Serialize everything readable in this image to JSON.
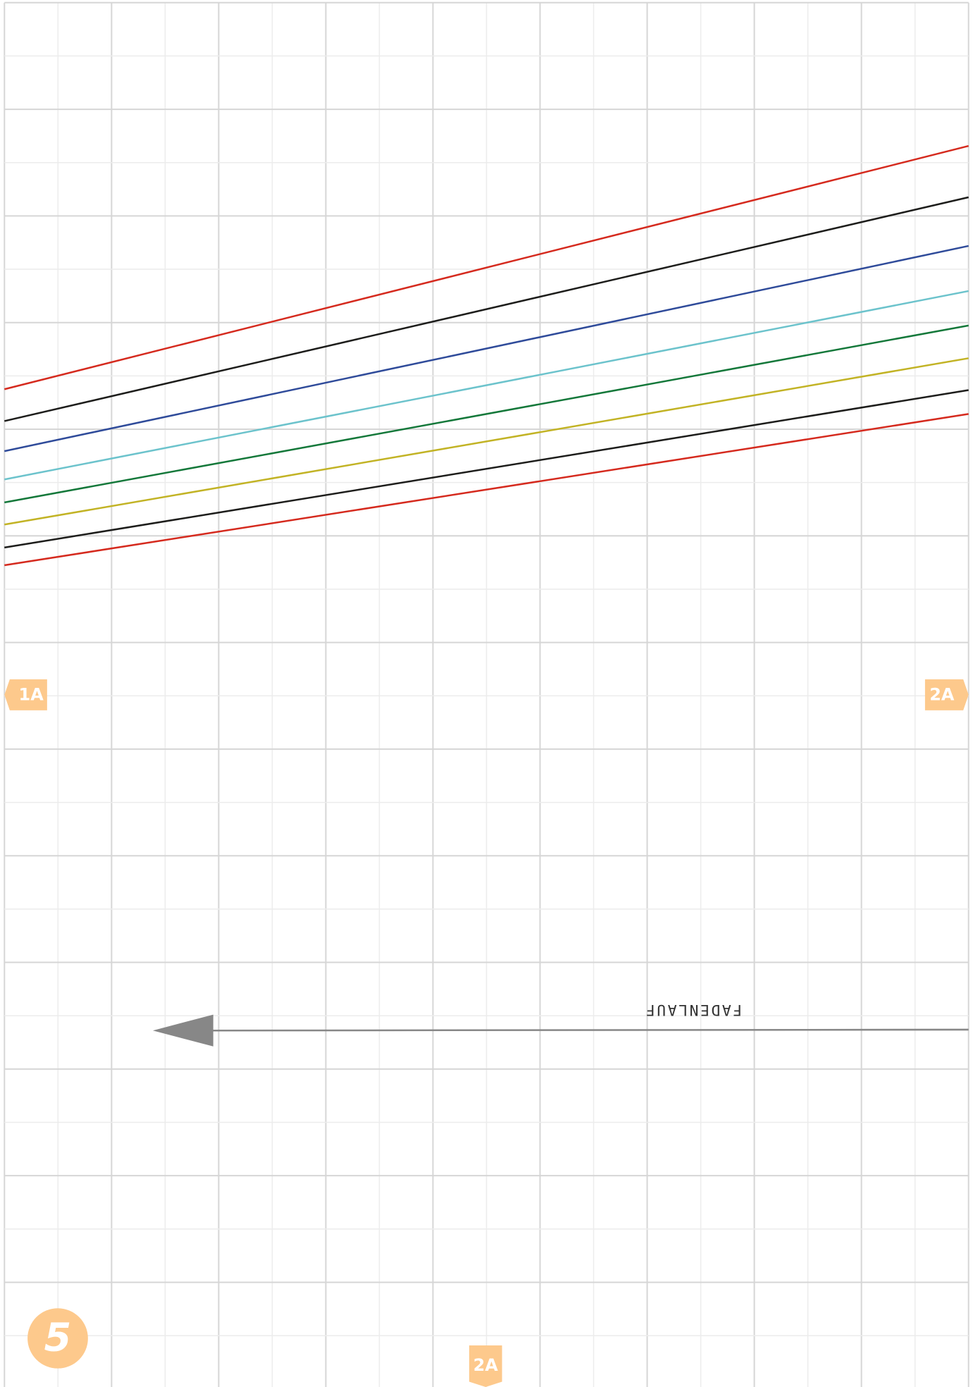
{
  "labels": {
    "left": "1A",
    "right": "2A",
    "bottom": "2A"
  },
  "page_number": "5",
  "grainline": "FADENLAUF"
}
